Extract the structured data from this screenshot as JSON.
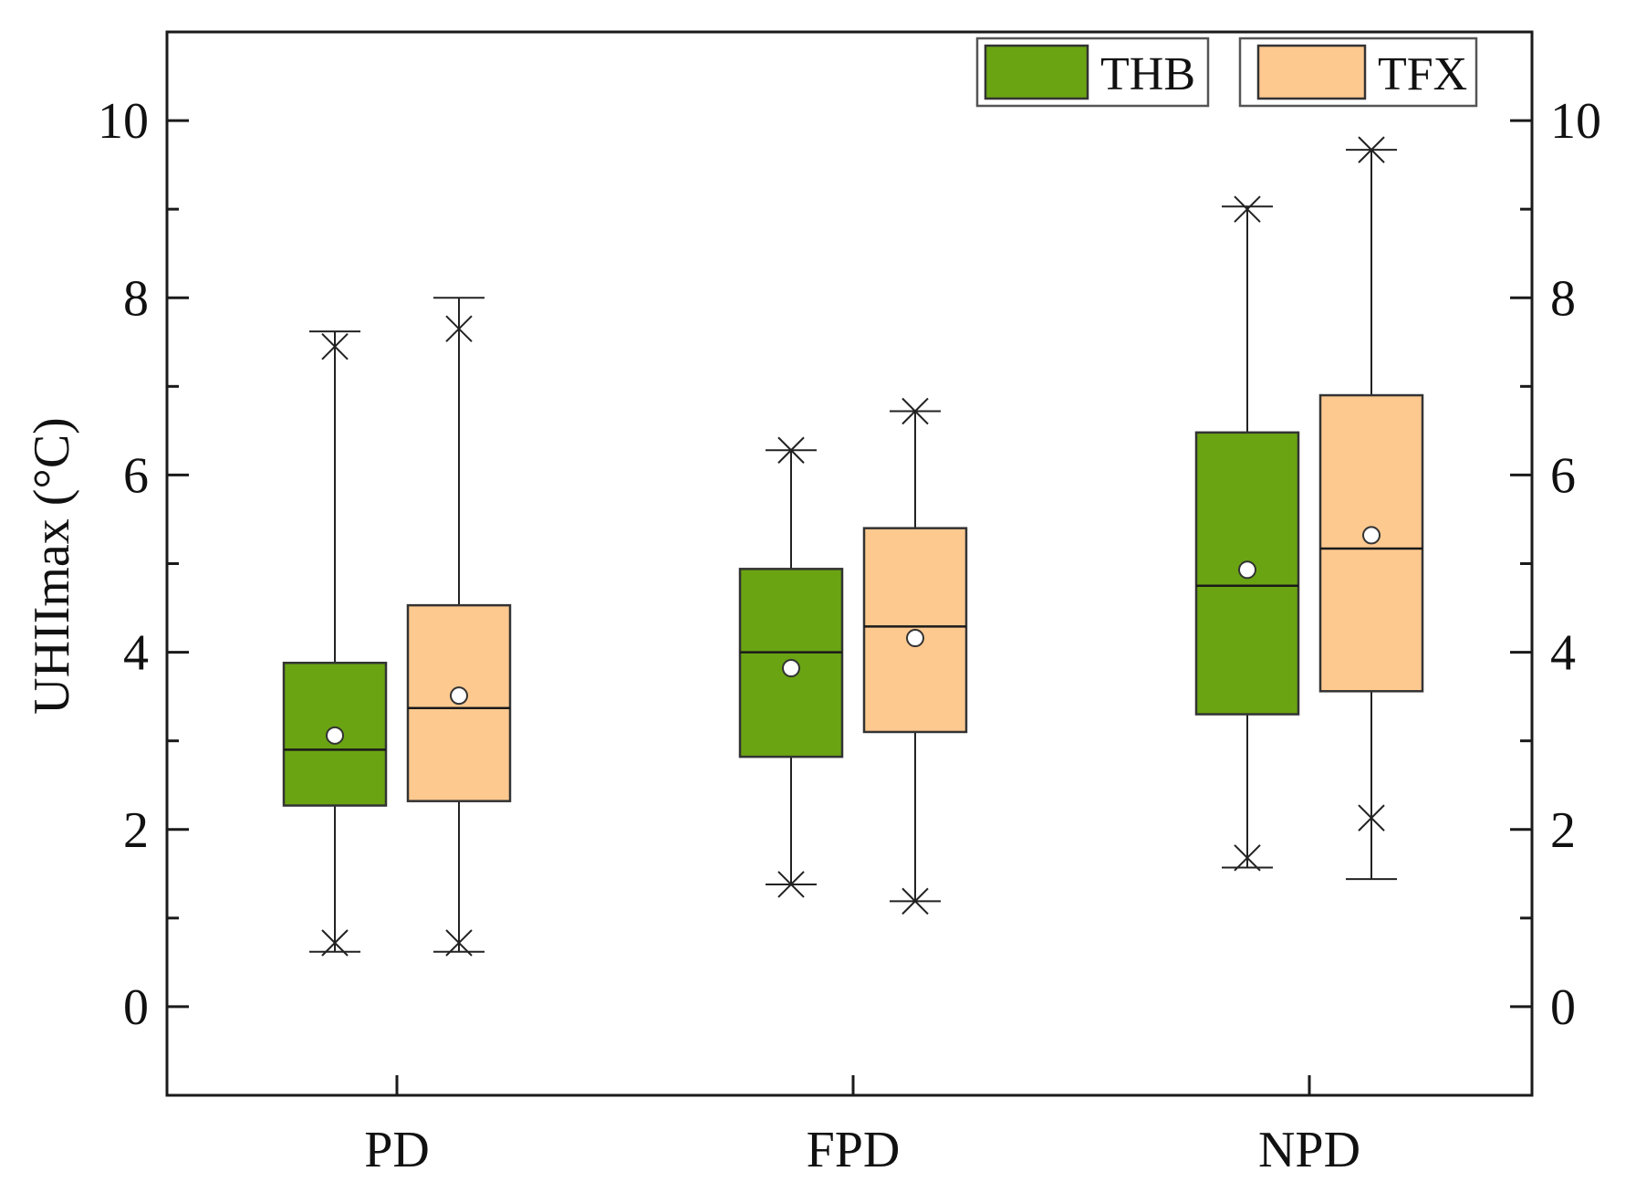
{
  "chart_data": {
    "type": "boxplot",
    "title": "",
    "xlabel": "",
    "ylabel": "UHIImax (°C)",
    "ylim": [
      -1,
      11
    ],
    "yticks": [
      0,
      2,
      4,
      6,
      8,
      10
    ],
    "ytick_labels": [
      "0",
      "2",
      "4",
      "6",
      "8",
      "10"
    ],
    "right_axis_labels": true,
    "minor_ticks": true,
    "categories": [
      "PD",
      "FPD",
      "NPD"
    ],
    "legend_position": "top-right",
    "series": [
      {
        "name": "THB",
        "color": "#6aa413",
        "boxes": [
          {
            "category": "PD",
            "min": 0.62,
            "q1": 2.27,
            "median": 2.9,
            "q3": 3.88,
            "max": 7.62,
            "mean": 3.06,
            "p1": 0.72,
            "p99": 7.45
          },
          {
            "category": "FPD",
            "min": 1.38,
            "q1": 2.82,
            "median": 4.0,
            "q3": 4.94,
            "max": 6.28,
            "mean": 3.82,
            "p1": 1.38,
            "p99": 6.28
          },
          {
            "category": "NPD",
            "min": 1.57,
            "q1": 3.3,
            "median": 4.75,
            "q3": 6.48,
            "max": 9.03,
            "mean": 4.93,
            "p1": 1.68,
            "p99": 9.0
          }
        ]
      },
      {
        "name": "TFX",
        "color": "#fdc98f",
        "boxes": [
          {
            "category": "PD",
            "min": 0.62,
            "q1": 2.32,
            "median": 3.37,
            "q3": 4.53,
            "max": 8.0,
            "mean": 3.51,
            "p1": 0.72,
            "p99": 7.65
          },
          {
            "category": "FPD",
            "min": 1.19,
            "q1": 3.1,
            "median": 4.29,
            "q3": 5.4,
            "max": 6.72,
            "mean": 4.16,
            "p1": 1.19,
            "p99": 6.72
          },
          {
            "category": "NPD",
            "min": 1.44,
            "q1": 3.56,
            "median": 5.17,
            "q3": 6.9,
            "max": 9.67,
            "mean": 5.32,
            "p1": 2.13,
            "p99": 9.67
          }
        ]
      }
    ]
  }
}
